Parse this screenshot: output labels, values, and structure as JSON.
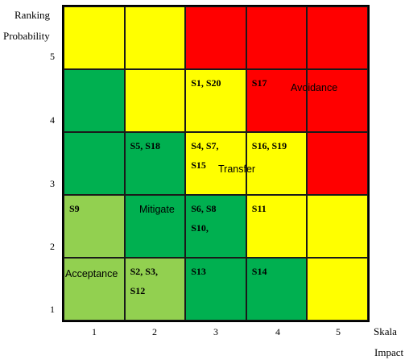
{
  "y_axis": {
    "title_line1": "Ranking",
    "title_line2": "Probability",
    "ticks": [
      "5",
      "4",
      "3",
      "2",
      "1"
    ]
  },
  "x_axis": {
    "title_line1": "Skala",
    "title_line2": "Impact",
    "ticks": [
      "1",
      "2",
      "3",
      "4",
      "5"
    ]
  },
  "colors": {
    "red": "#ff0000",
    "yellow": "#ffff00",
    "green": "#00b050",
    "light_green": "#92d050"
  },
  "rows": [
    {
      "probability": "5",
      "cells": [
        {
          "color": "yellow",
          "label": ""
        },
        {
          "color": "yellow",
          "label": ""
        },
        {
          "color": "red",
          "label": ""
        },
        {
          "color": "red",
          "label": ""
        },
        {
          "color": "red",
          "label": ""
        }
      ]
    },
    {
      "probability": "4",
      "cells": [
        {
          "color": "green",
          "label": ""
        },
        {
          "color": "yellow",
          "label": ""
        },
        {
          "color": "yellow",
          "label": "S1, S20"
        },
        {
          "color": "red",
          "label": "S17"
        },
        {
          "color": "red",
          "label": ""
        }
      ]
    },
    {
      "probability": "3",
      "cells": [
        {
          "color": "green",
          "label": ""
        },
        {
          "color": "green",
          "label": "S5, S18"
        },
        {
          "color": "yellow",
          "label": "S4, S7,\nS15"
        },
        {
          "color": "yellow",
          "label": "S16, S19"
        },
        {
          "color": "red",
          "label": ""
        }
      ]
    },
    {
      "probability": "2",
      "cells": [
        {
          "color": "light_green",
          "label": "S9"
        },
        {
          "color": "green",
          "label": ""
        },
        {
          "color": "green",
          "label": "S6, S8\nS10,"
        },
        {
          "color": "yellow",
          "label": "S11"
        },
        {
          "color": "yellow",
          "label": ""
        }
      ]
    },
    {
      "probability": "1",
      "cells": [
        {
          "color": "light_green",
          "label": ""
        },
        {
          "color": "light_green",
          "label": "S2, S3,\nS12"
        },
        {
          "color": "green",
          "label": "S13"
        },
        {
          "color": "green",
          "label": "S14"
        },
        {
          "color": "yellow",
          "label": ""
        }
      ]
    }
  ],
  "zones": {
    "avoidance": "Avoidance",
    "transfer": "Transfer",
    "mitigate": "Mitigate",
    "acceptance": "Acceptance"
  }
}
